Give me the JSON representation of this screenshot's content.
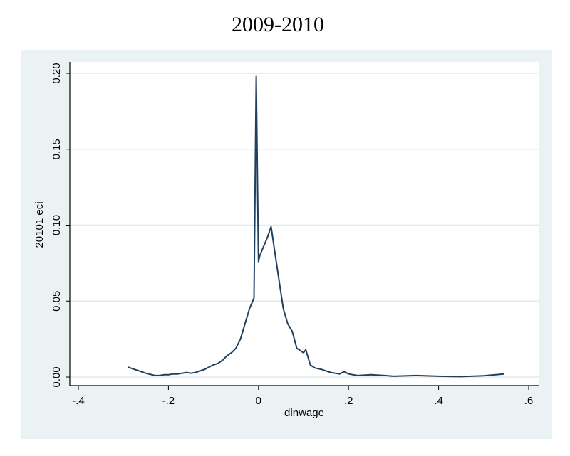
{
  "title": "2009-2010",
  "chart_data": {
    "type": "line",
    "title": "2009-2010",
    "xlabel": "dlnwage",
    "ylabel": "20101 eci",
    "xlim": [
      -0.4,
      0.6
    ],
    "ylim": [
      0,
      0.2
    ],
    "xticks": [
      -0.4,
      -0.2,
      0,
      0.2,
      0.4,
      0.6
    ],
    "xtick_labels": [
      "-.4",
      "-.2",
      "0",
      ".2",
      ".4",
      ".6"
    ],
    "yticks": [
      0,
      0.05,
      0.1,
      0.15,
      0.2
    ],
    "ytick_labels": [
      "0.00",
      "0.05",
      "0.10",
      "0.15",
      "0.20"
    ],
    "grid": true,
    "line_color": "#1f3f5f",
    "series": [
      {
        "x": [
          -0.29,
          -0.27,
          -0.25,
          -0.23,
          -0.22,
          -0.21,
          -0.2,
          -0.19,
          -0.18,
          -0.17,
          -0.16,
          -0.15,
          -0.14,
          -0.13,
          -0.12,
          -0.11,
          -0.1,
          -0.09,
          -0.08,
          -0.07,
          -0.06,
          -0.05,
          -0.04,
          -0.03,
          -0.02,
          -0.01,
          -0.005,
          0.0,
          0.003,
          0.01,
          0.02,
          0.028,
          0.035,
          0.045,
          0.055,
          0.065,
          0.075,
          0.085,
          0.095,
          0.1,
          0.105,
          0.115,
          0.125,
          0.14,
          0.16,
          0.18,
          0.19,
          0.2,
          0.22,
          0.25,
          0.28,
          0.3,
          0.35,
          0.4,
          0.45,
          0.5,
          0.545
        ],
        "y": [
          0.0065,
          0.0045,
          0.0025,
          0.001,
          0.001,
          0.0015,
          0.0015,
          0.002,
          0.002,
          0.0025,
          0.003,
          0.0025,
          0.003,
          0.004,
          0.005,
          0.0065,
          0.008,
          0.009,
          0.011,
          0.014,
          0.016,
          0.019,
          0.025,
          0.035,
          0.045,
          0.052,
          0.198,
          0.076,
          0.08,
          0.085,
          0.092,
          0.099,
          0.085,
          0.065,
          0.045,
          0.035,
          0.03,
          0.019,
          0.017,
          0.016,
          0.018,
          0.008,
          0.006,
          0.005,
          0.003,
          0.002,
          0.0035,
          0.002,
          0.001,
          0.0015,
          0.001,
          0.0005,
          0.001,
          0.0005,
          0.0003,
          0.0008,
          0.002
        ]
      }
    ]
  }
}
